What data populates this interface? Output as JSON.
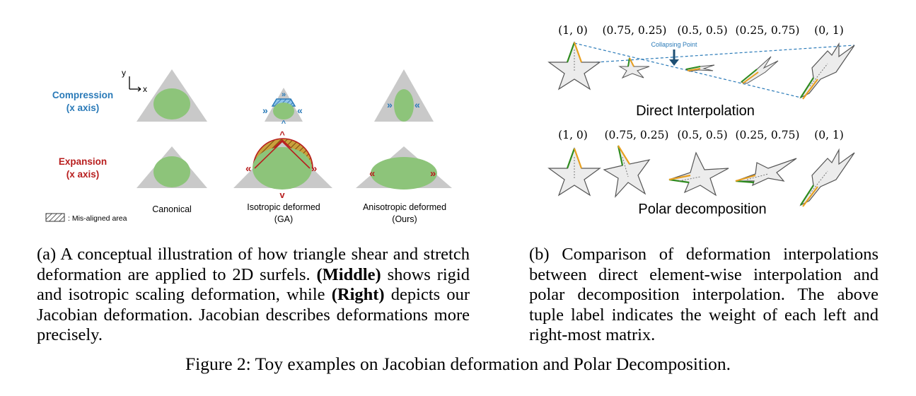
{
  "panel_a": {
    "axis_y": "y",
    "axis_x": "x",
    "row_compression": [
      "Compression",
      "(x axis)"
    ],
    "row_expansion": [
      "Expansion",
      "(x axis)"
    ],
    "col_canonical": "Canonical",
    "col_isotropic": [
      "Isotropic deformed",
      "(GA)"
    ],
    "col_anisotropic": [
      "Anisotropic deformed",
      "(Ours)"
    ],
    "legend_label": ": Mis-aligned area",
    "colors": {
      "compression": "#2a7ab8",
      "expansion": "#b81e1e",
      "surfel": "#8dc47a",
      "triangle": "#c9c9c9"
    }
  },
  "panel_b": {
    "top_tuples": [
      "(1, 0)",
      "(0.75, 0.25)",
      "(0.5, 0.5)",
      "(0.25, 0.75)",
      "(0, 1)"
    ],
    "collapsing_label": "Collapsing Point",
    "top_title": "Direct Interpolation",
    "bottom_tuples": [
      "(1, 0)",
      "(0.75, 0.25)",
      "(0.5, 0.5)",
      "(0.25, 0.75)",
      "(0, 1)"
    ],
    "bottom_title": "Polar decomposition"
  },
  "caption_a": {
    "pre": "(a) A conceptual illustration of how triangle shear and stretch deformation are applied to 2D surfels. ",
    "b1": "(Middle)",
    "mid": " shows rigid and isotropic scaling deformation, while ",
    "b2": "(Right)",
    "post": " depicts our Jacobian deformation. Jacobian describes deformations more precisely."
  },
  "caption_b": "(b) Comparison of deformation interpolations between direct element-wise interpolation and polar decomposition interpolation. The above tuple label indicates the weight of each left and right-most matrix.",
  "figure_caption": "Figure 2: Toy examples on Jacobian deformation and Polar Decomposition."
}
